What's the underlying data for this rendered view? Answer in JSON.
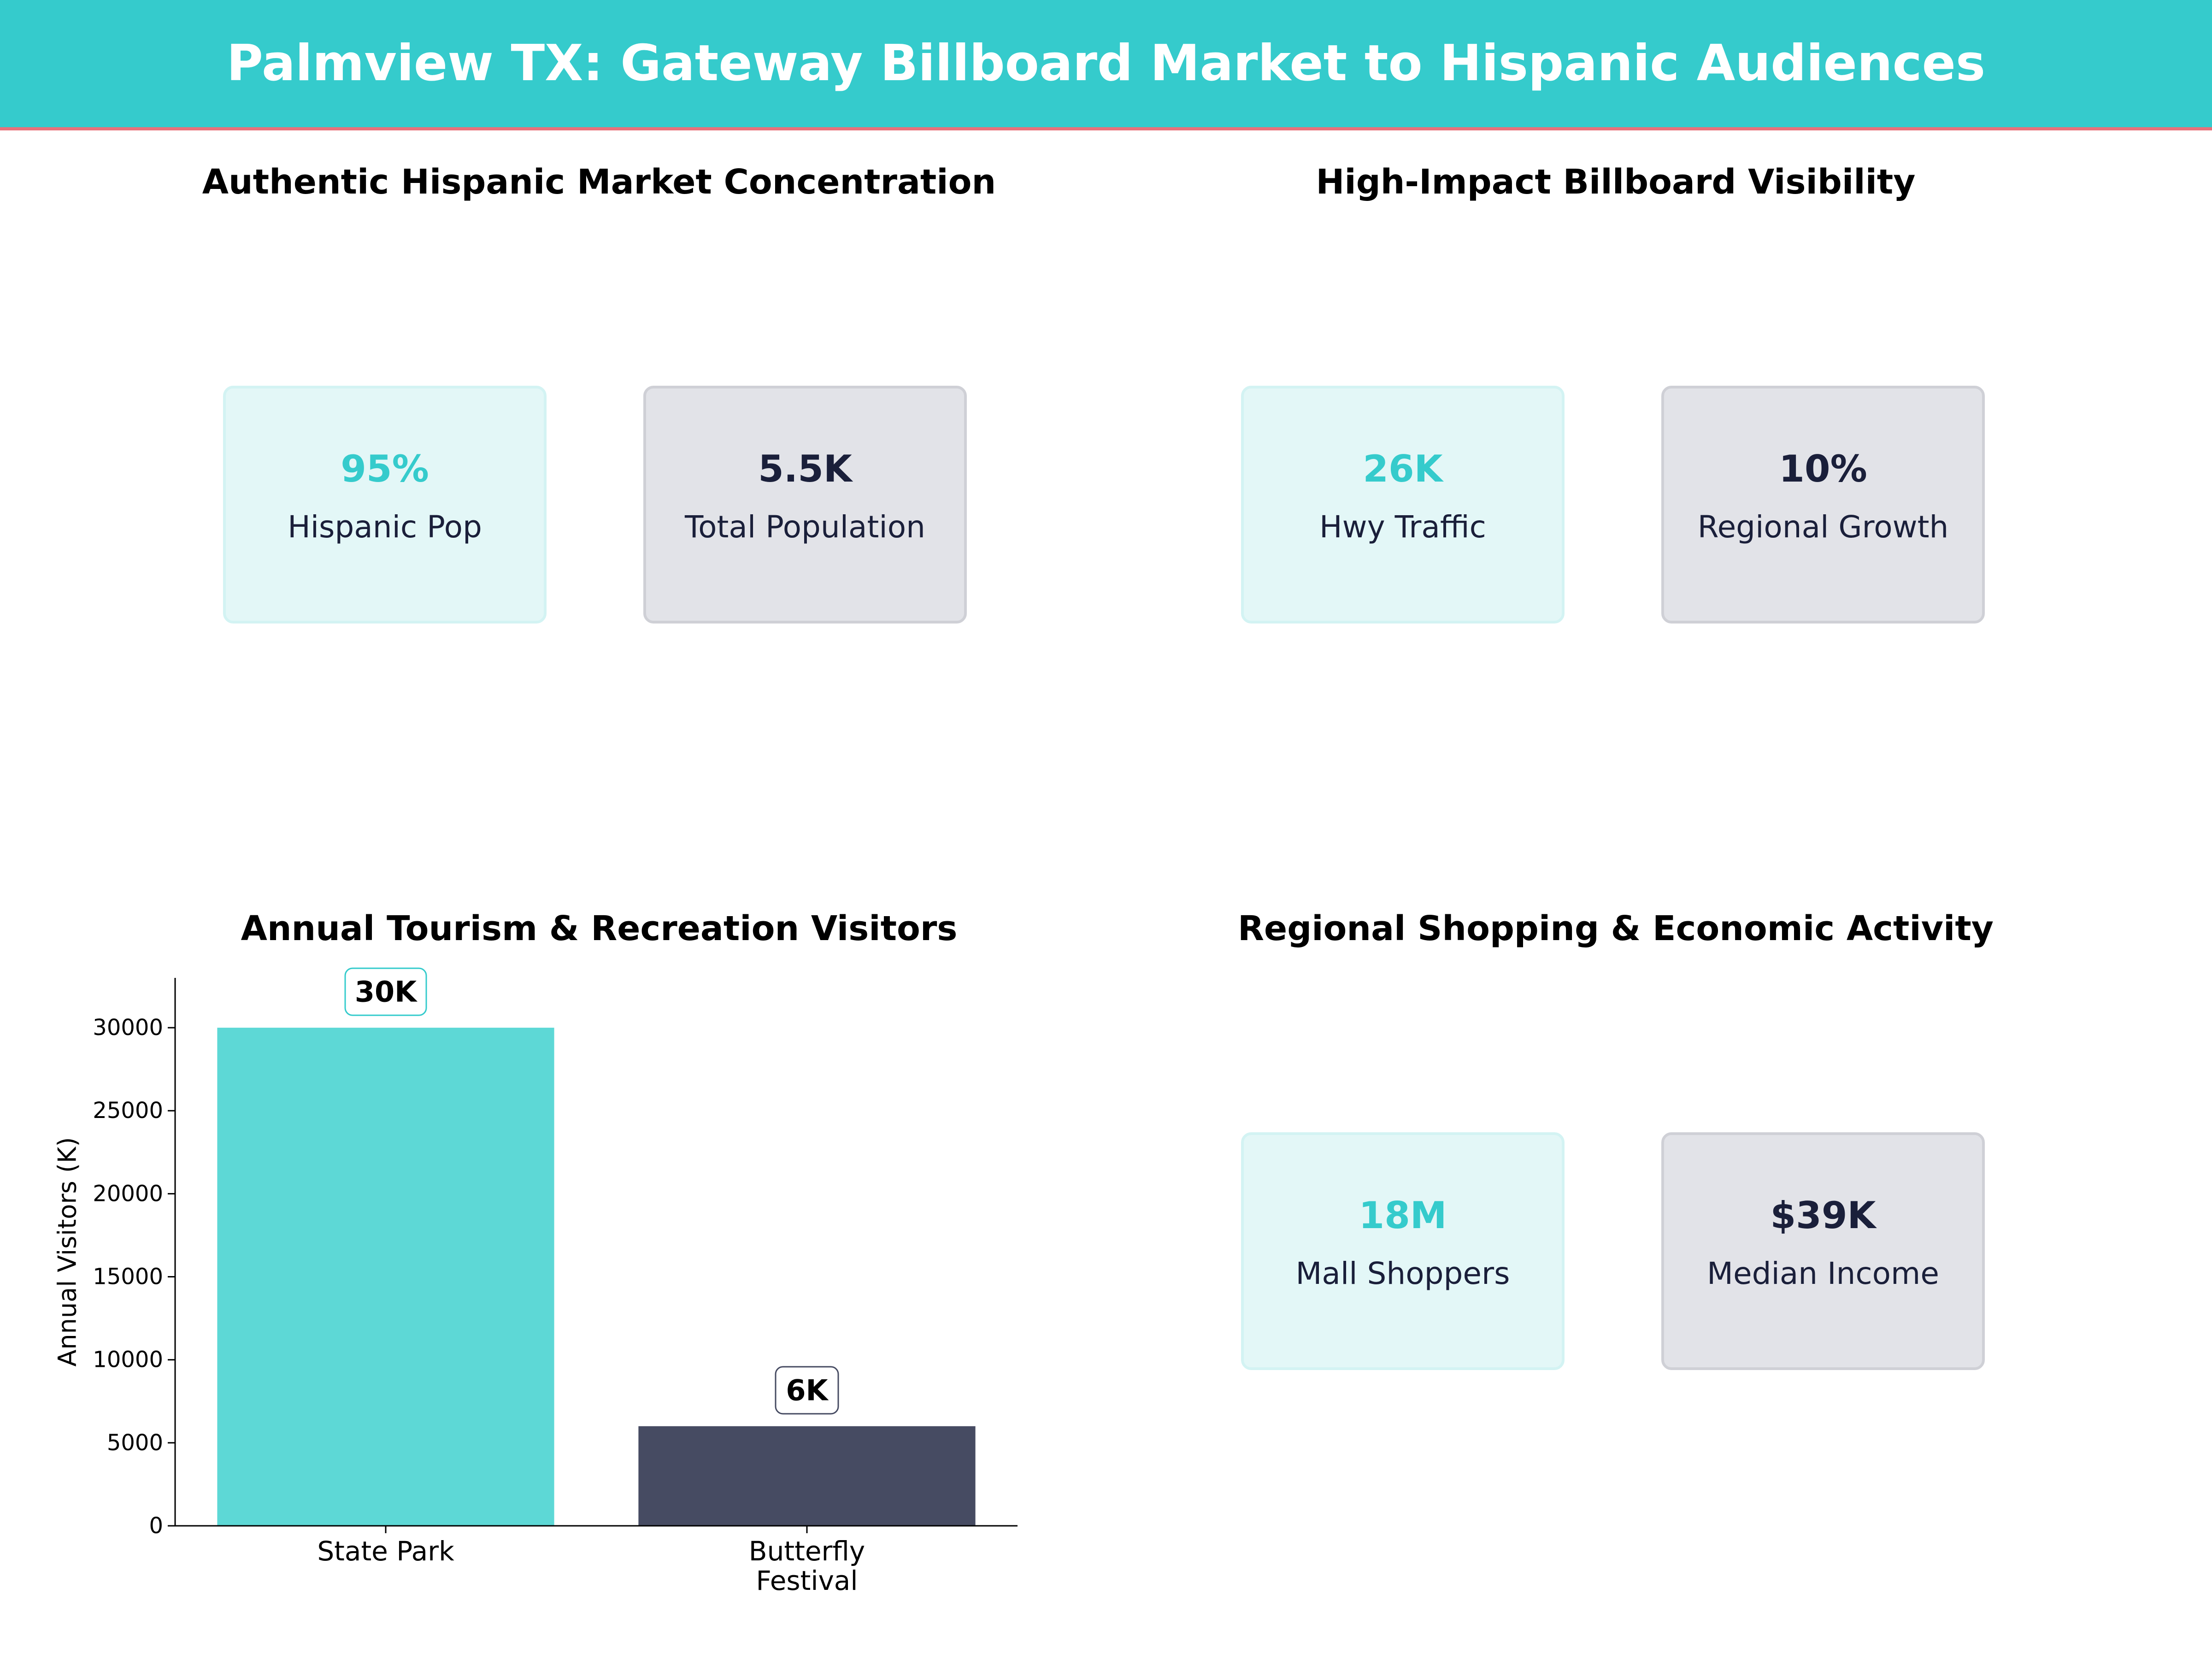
{
  "header": {
    "title": "Palmview TX: Gateway Billboard Market to Hispanic Audiences"
  },
  "colors": {
    "accent_teal": "#35cbcc",
    "bar_teal": "#5dd8d6",
    "bar_dark": "#464b62",
    "dark_text": "#1a1f3a",
    "banner_line": "#e8717a"
  },
  "panels": {
    "market": {
      "title": "Authentic Hispanic Market Concentration",
      "cards": [
        {
          "value": "95%",
          "label": "Hispanic Pop"
        },
        {
          "value": "5.5K",
          "label": "Total Population"
        }
      ]
    },
    "visibility": {
      "title": "High-Impact Billboard Visibility",
      "cards": [
        {
          "value": "26K",
          "label": "Hwy Traffic"
        },
        {
          "value": "10%",
          "label": "Regional Growth"
        }
      ]
    },
    "tourism": {
      "title": "Annual Tourism & Recreation Visitors"
    },
    "shopping": {
      "title": "Regional Shopping & Economic Activity",
      "cards": [
        {
          "value": "18M",
          "label": "Mall Shoppers"
        },
        {
          "value": "$39K",
          "label": "Median Income"
        }
      ]
    }
  },
  "chart_data": {
    "type": "bar",
    "title": "Annual Tourism & Recreation Visitors",
    "xlabel": "",
    "ylabel": "Annual Visitors (K)",
    "categories": [
      "State Park",
      "Butterfly Festival"
    ],
    "category_lines": [
      [
        "State Park"
      ],
      [
        "Butterfly",
        "Festival"
      ]
    ],
    "values": [
      30000,
      6000
    ],
    "data_labels": [
      "30K",
      "6K"
    ],
    "bar_colors": [
      "#5dd8d6",
      "#464b62"
    ],
    "label_border_colors": [
      "#35cbcc",
      "#464b62"
    ],
    "yticks": [
      0,
      5000,
      10000,
      15000,
      20000,
      25000,
      30000
    ],
    "ylim": [
      0,
      33000
    ],
    "grid": false,
    "legend": "none"
  }
}
